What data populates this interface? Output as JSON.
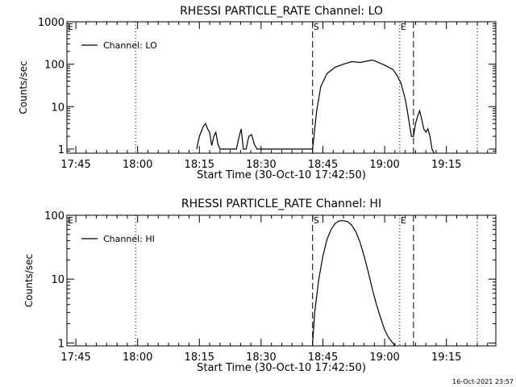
{
  "timestamp": "16-Oct-2021 23:57",
  "chart_data": [
    {
      "type": "line",
      "title": "RHESSI PARTICLE_RATE Channel: LO",
      "xlabel": "Start Time (30-Oct-10 17:42:50)",
      "ylabel": "Counts/sec",
      "xticks": [
        "17:45",
        "18:00",
        "18:15",
        "18:30",
        "18:45",
        "19:00",
        "19:15"
      ],
      "xlim": [
        "17:42:50",
        "19:27:00"
      ],
      "yscale": "log",
      "ylim": [
        0.8,
        1000
      ],
      "yticks": [
        "1",
        "10",
        "100",
        "1000"
      ],
      "legend": {
        "placement": "top-left",
        "entries": [
          "Channel: LO"
        ]
      },
      "markers": [
        {
          "time": "17:59:30",
          "style": "dotted",
          "label": ""
        },
        {
          "time": "18:42:30",
          "style": "dashed",
          "label": "S"
        },
        {
          "time": "19:03:40",
          "style": "dotted",
          "label": "E"
        },
        {
          "time": "19:07:00",
          "style": "dashed",
          "label": ""
        },
        {
          "time": "19:22:30",
          "style": "dotted",
          "label": ""
        }
      ],
      "edge_labels": [
        "E"
      ],
      "series": [
        {
          "name": "Channel: LO",
          "x": [
            "18:14:20",
            "18:15:00",
            "18:16:00",
            "18:16:30",
            "18:17:00",
            "18:17:30",
            "18:18:00",
            "18:18:30",
            "18:19:00",
            "18:19:30",
            "18:20:00",
            "18:24:00",
            "18:24:40",
            "18:25:10",
            "18:25:40",
            "18:26:20",
            "18:27:00",
            "18:27:40",
            "18:28:20",
            "18:29:00",
            "18:29:30",
            "18:42:30",
            "18:43:30",
            "18:44:30",
            "18:46:00",
            "18:48:00",
            "18:50:00",
            "18:52:00",
            "18:54:00",
            "18:56:00",
            "18:57:00",
            "18:58:00",
            "19:00:00",
            "19:02:00",
            "19:03:00",
            "19:04:00",
            "19:05:00",
            "19:05:30",
            "19:06:00",
            "19:06:30",
            "19:07:00",
            "19:07:30",
            "19:08:00",
            "19:08:30",
            "19:09:00",
            "19:09:30",
            "19:10:00",
            "19:10:30",
            "19:11:00",
            "19:11:30",
            "19:12:00"
          ],
          "y": [
            1,
            2,
            3.5,
            4,
            3,
            2.5,
            1.2,
            2,
            2.5,
            1.3,
            1,
            1,
            2,
            3,
            1,
            1,
            2,
            2.2,
            1.3,
            1,
            1,
            1,
            8,
            30,
            60,
            85,
            100,
            115,
            110,
            120,
            125,
            115,
            95,
            75,
            55,
            35,
            15,
            8,
            4,
            2,
            2,
            4,
            6,
            8,
            5,
            3,
            2.5,
            3,
            2,
            1,
            0.7
          ]
        }
      ]
    },
    {
      "type": "line",
      "title": "RHESSI PARTICLE_RATE Channel: HI",
      "xlabel": "Start Time (30-Oct-10 17:42:50)",
      "ylabel": "Counts/sec",
      "xticks": [
        "17:45",
        "18:00",
        "18:15",
        "18:30",
        "18:45",
        "19:00",
        "19:15"
      ],
      "xlim": [
        "17:42:50",
        "19:27:00"
      ],
      "yscale": "log",
      "ylim": [
        0.9,
        100
      ],
      "yticks": [
        "1",
        "10",
        "100"
      ],
      "legend": {
        "placement": "top-left",
        "entries": [
          "Channel: HI"
        ]
      },
      "markers": [
        {
          "time": "17:59:30",
          "style": "dotted",
          "label": ""
        },
        {
          "time": "18:42:30",
          "style": "dashed",
          "label": "S"
        },
        {
          "time": "19:03:40",
          "style": "dotted",
          "label": "E"
        },
        {
          "time": "19:07:00",
          "style": "dashed",
          "label": ""
        },
        {
          "time": "19:22:30",
          "style": "dotted",
          "label": ""
        }
      ],
      "edge_labels": [
        "E"
      ],
      "series": [
        {
          "name": "Channel: HI",
          "x": [
            "18:42:30",
            "18:43:00",
            "18:44:00",
            "18:45:00",
            "18:46:00",
            "18:47:00",
            "18:48:00",
            "18:49:00",
            "18:50:00",
            "18:51:00",
            "18:52:00",
            "18:53:00",
            "18:54:00",
            "18:55:00",
            "18:56:00",
            "18:57:00",
            "18:58:00",
            "18:59:00",
            "19:00:00",
            "19:01:00",
            "19:02:00",
            "19:02:30"
          ],
          "y": [
            1,
            3,
            10,
            23,
            42,
            60,
            75,
            82,
            82,
            80,
            70,
            55,
            38,
            23,
            13,
            7,
            4,
            2.5,
            1.6,
            1.2,
            1,
            0.9
          ]
        }
      ]
    }
  ]
}
